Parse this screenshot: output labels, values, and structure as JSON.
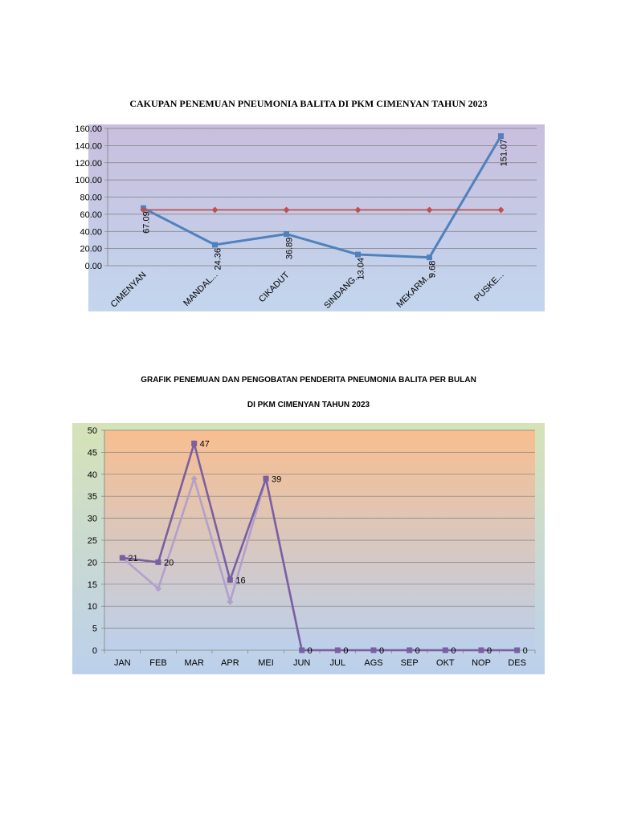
{
  "chart_data": [
    {
      "type": "line",
      "title": "CAKUPAN PENEMUAN PNEUMONIA BALITA DI PKM CIMENYAN TAHUN 2023",
      "categories": [
        "CIMENYAN",
        "MANDAL...",
        "CIKADUT",
        "SINDANG...",
        "MEKARM...",
        "PUSKE..."
      ],
      "series": [
        {
          "values": [
            67.09,
            24.36,
            36.89,
            13.04,
            9.68,
            151.07
          ],
          "color": "#4f81bd",
          "marker": "square",
          "labels": [
            "67.09",
            "24.36",
            "36.89",
            "13.04",
            "9.68",
            "151.07"
          ]
        },
        {
          "values": [
            65,
            65,
            65,
            65,
            65,
            65
          ],
          "color": "#c0504d",
          "marker": "diamond"
        }
      ],
      "yticks": [
        "0.00",
        "20.00",
        "40.00",
        "60.00",
        "80.00",
        "100.00",
        "120.00",
        "140.00",
        "160.00"
      ],
      "ylim": [
        0,
        160
      ],
      "grid": true,
      "background": [
        "#c8bedd",
        "#c3d6ee"
      ]
    },
    {
      "type": "line",
      "title": "GRAFIK PENEMUAN DAN PENGOBATAN PENDERITA PNEUMONIA BALITA PER BULAN",
      "subtitle": "DI PKM CIMENYAN TAHUN 2023",
      "categories": [
        "JAN",
        "FEB",
        "MAR",
        "APR",
        "MEI",
        "JUN",
        "JUL",
        "AGS",
        "SEP",
        "OKT",
        "NOP",
        "DES"
      ],
      "series": [
        {
          "values": [
            21,
            20,
            47,
            16,
            39,
            0,
            0,
            0,
            0,
            0,
            0,
            0
          ],
          "color": "#7a5fa3",
          "marker": "square",
          "labels": [
            "21",
            "20",
            "47",
            "16",
            "39",
            "0",
            "0",
            "0",
            "0",
            "0",
            "0",
            "0"
          ]
        },
        {
          "values": [
            21,
            14,
            39,
            11,
            39,
            0,
            0,
            0,
            0,
            0,
            0,
            0
          ],
          "color": "#b1a0cc",
          "marker": "diamond"
        }
      ],
      "yticks": [
        "0",
        "5",
        "10",
        "15",
        "20",
        "25",
        "30",
        "35",
        "40",
        "45",
        "50"
      ],
      "ylim": [
        0,
        50
      ],
      "grid": true,
      "background": [
        "#f8be8f",
        "#bcd0ec"
      ]
    }
  ]
}
